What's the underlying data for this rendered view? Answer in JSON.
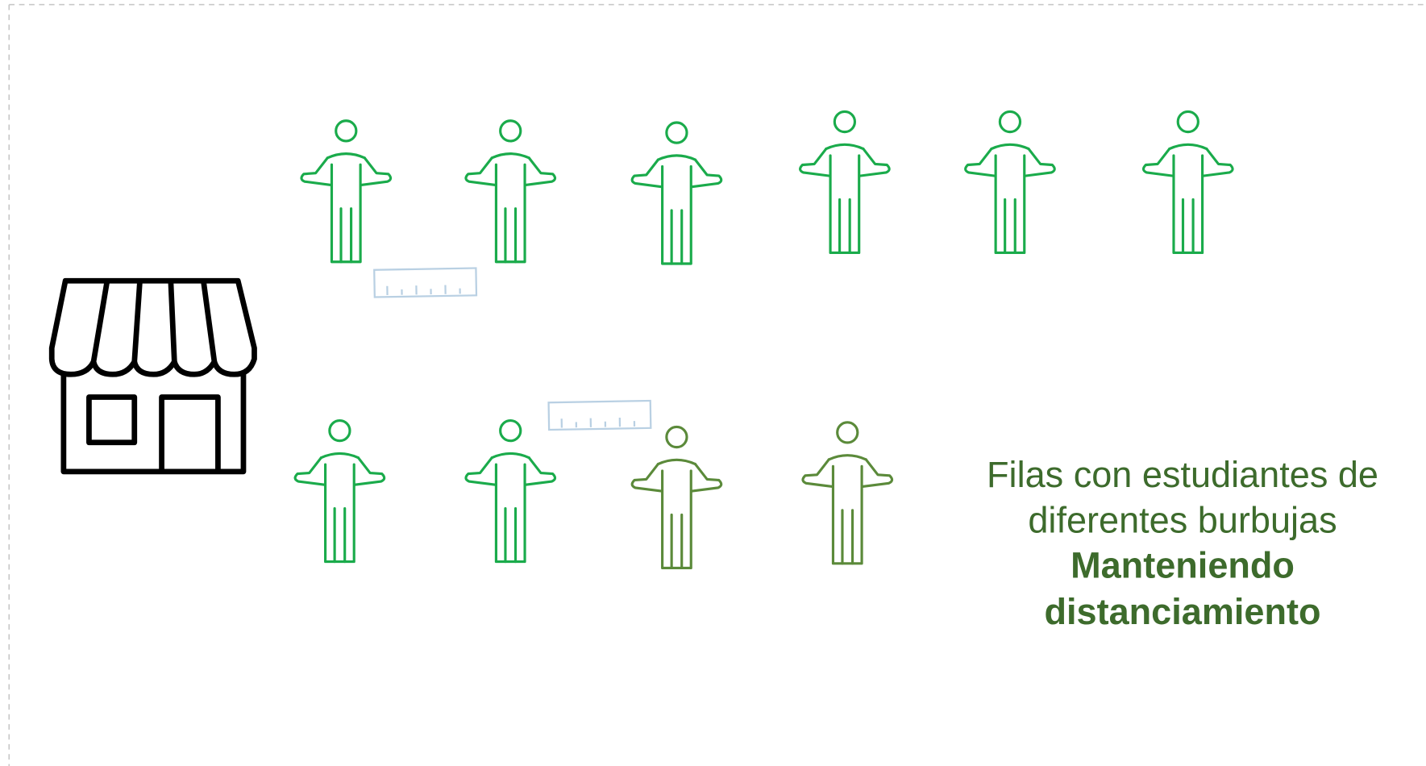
{
  "caption": {
    "lines": [
      "Filas con estudiantes de",
      "diferentes burbujas"
    ],
    "emphasis": [
      "Manteniendo",
      "distanciamiento"
    ]
  }
}
